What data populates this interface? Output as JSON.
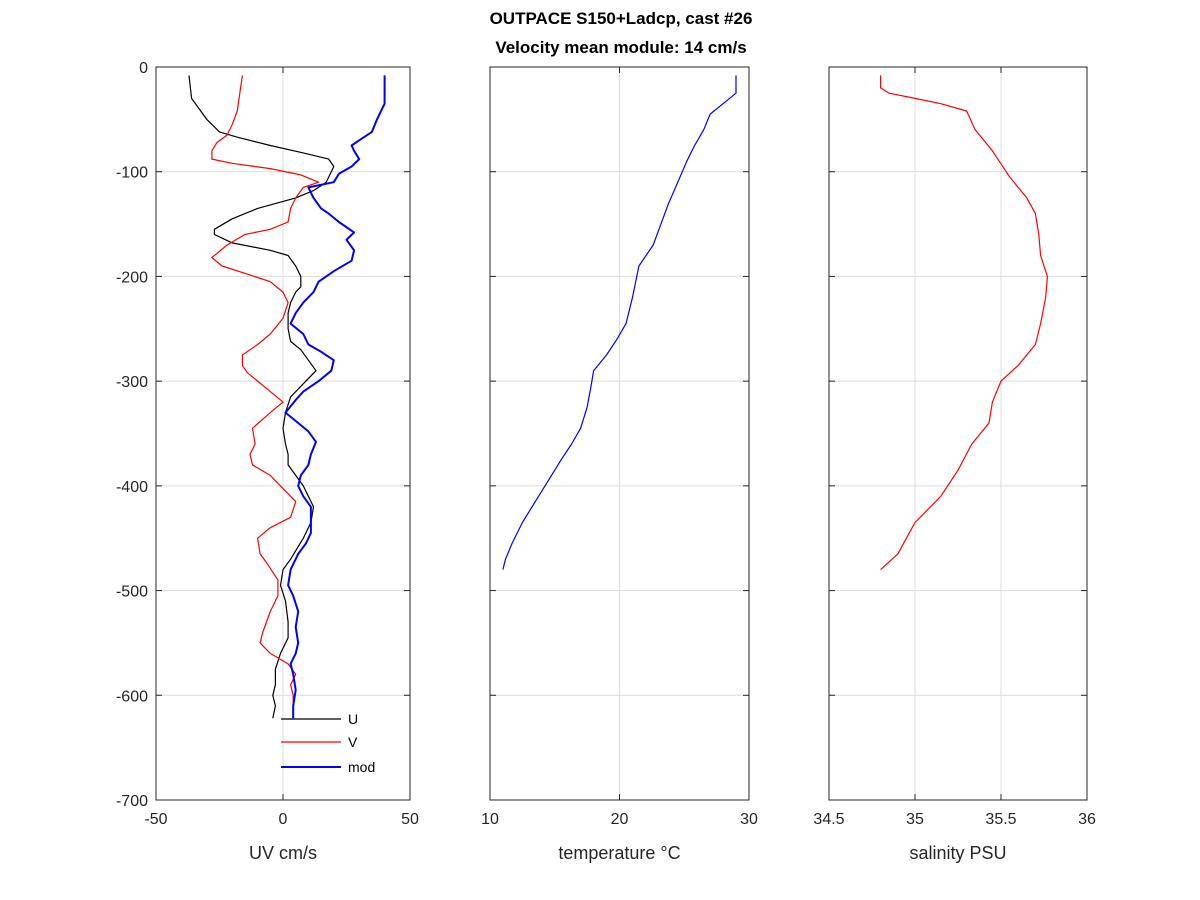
{
  "title_line1": "OUTPACE S150+Ladcp, cast #26",
  "title_line2": "Velocity mean module:  14 cm/s",
  "chart_data": [
    {
      "type": "line",
      "xlabel": "UV cm/s",
      "ylabel": "",
      "xlim": [
        -50,
        50
      ],
      "ylim": [
        -700,
        0
      ],
      "xticks": [
        -50,
        0,
        50
      ],
      "yticks": [
        0,
        -100,
        -200,
        -300,
        -400,
        -500,
        -600,
        -700
      ],
      "grid": true,
      "legend_position": "bottom-right inside",
      "series": [
        {
          "name": "U",
          "color": "#000000",
          "points": [
            [
              -37,
              -8
            ],
            [
              -36,
              -30
            ],
            [
              -30,
              -50
            ],
            [
              -25,
              -62
            ],
            [
              -18,
              -67
            ],
            [
              -5,
              -75
            ],
            [
              8,
              -82
            ],
            [
              18,
              -88
            ],
            [
              20,
              -95
            ],
            [
              17,
              -110
            ],
            [
              12,
              -118
            ],
            [
              5,
              -125
            ],
            [
              -10,
              -135
            ],
            [
              -20,
              -145
            ],
            [
              -27,
              -155
            ],
            [
              -27,
              -160
            ],
            [
              -20,
              -168
            ],
            [
              -5,
              -175
            ],
            [
              2,
              -180
            ],
            [
              5,
              -190
            ],
            [
              7,
              -200
            ],
            [
              7,
              -210
            ],
            [
              5,
              -215
            ],
            [
              3,
              -225
            ],
            [
              2,
              -235
            ],
            [
              2,
              -250
            ],
            [
              3,
              -262
            ],
            [
              7,
              -270
            ],
            [
              10,
              -280
            ],
            [
              13,
              -290
            ],
            [
              9,
              -300
            ],
            [
              3,
              -315
            ],
            [
              1,
              -330
            ],
            [
              0,
              -345
            ],
            [
              1,
              -360
            ],
            [
              2,
              -370
            ],
            [
              2,
              -380
            ],
            [
              5,
              -390
            ],
            [
              8,
              -400
            ],
            [
              10,
              -410
            ],
            [
              12,
              -420
            ],
            [
              11,
              -435
            ],
            [
              8,
              -450
            ],
            [
              3,
              -470
            ],
            [
              0,
              -480
            ],
            [
              -1,
              -495
            ],
            [
              1,
              -510
            ],
            [
              2,
              -530
            ],
            [
              2,
              -545
            ],
            [
              -1,
              -560
            ],
            [
              -3,
              -575
            ],
            [
              -3,
              -590
            ],
            [
              -4,
              -600
            ],
            [
              -3,
              -610
            ],
            [
              -4,
              -622
            ]
          ]
        },
        {
          "name": "V",
          "color": "#ff0000",
          "points": [
            [
              -16,
              -8
            ],
            [
              -17,
              -25
            ],
            [
              -18,
              -42
            ],
            [
              -20,
              -55
            ],
            [
              -22,
              -65
            ],
            [
              -26,
              -72
            ],
            [
              -28,
              -80
            ],
            [
              -28,
              -88
            ],
            [
              -20,
              -92
            ],
            [
              -5,
              -97
            ],
            [
              7,
              -103
            ],
            [
              14,
              -110
            ],
            [
              8,
              -115
            ],
            [
              5,
              -125
            ],
            [
              3,
              -135
            ],
            [
              2,
              -148
            ],
            [
              -5,
              -155
            ],
            [
              -15,
              -160
            ],
            [
              -22,
              -170
            ],
            [
              -28,
              -182
            ],
            [
              -24,
              -190
            ],
            [
              -15,
              -197
            ],
            [
              -5,
              -205
            ],
            [
              0,
              -215
            ],
            [
              2,
              -225
            ],
            [
              0,
              -240
            ],
            [
              -5,
              -255
            ],
            [
              -10,
              -265
            ],
            [
              -16,
              -275
            ],
            [
              -16,
              -285
            ],
            [
              -14,
              -292
            ],
            [
              -10,
              -300
            ],
            [
              -5,
              -310
            ],
            [
              0,
              -320
            ],
            [
              -5,
              -330
            ],
            [
              -12,
              -345
            ],
            [
              -11,
              -360
            ],
            [
              -13,
              -370
            ],
            [
              -12,
              -380
            ],
            [
              -5,
              -390
            ],
            [
              1,
              -405
            ],
            [
              5,
              -415
            ],
            [
              3,
              -430
            ],
            [
              -5,
              -440
            ],
            [
              -10,
              -450
            ],
            [
              -9,
              -465
            ],
            [
              -6,
              -475
            ],
            [
              -2,
              -490
            ],
            [
              -2,
              -505
            ],
            [
              -5,
              -520
            ],
            [
              -8,
              -540
            ],
            [
              -9,
              -550
            ],
            [
              -5,
              -560
            ],
            [
              2,
              -570
            ],
            [
              5,
              -580
            ],
            [
              3,
              -590
            ],
            [
              4,
              -600
            ],
            [
              4,
              -610
            ]
          ]
        },
        {
          "name": "mod",
          "color": "#0000ff",
          "points": [
            [
              40,
              -8
            ],
            [
              40,
              -35
            ],
            [
              37,
              -50
            ],
            [
              35,
              -62
            ],
            [
              30,
              -70
            ],
            [
              27,
              -75
            ],
            [
              28,
              -80
            ],
            [
              30,
              -88
            ],
            [
              27,
              -95
            ],
            [
              22,
              -102
            ],
            [
              20,
              -110
            ],
            [
              10,
              -115
            ],
            [
              12,
              -125
            ],
            [
              15,
              -135
            ],
            [
              18,
              -140
            ],
            [
              22,
              -148
            ],
            [
              28,
              -158
            ],
            [
              25,
              -165
            ],
            [
              28,
              -175
            ],
            [
              27,
              -185
            ],
            [
              20,
              -195
            ],
            [
              14,
              -205
            ],
            [
              12,
              -215
            ],
            [
              8,
              -225
            ],
            [
              5,
              -235
            ],
            [
              3,
              -245
            ],
            [
              8,
              -255
            ],
            [
              10,
              -265
            ],
            [
              15,
              -272
            ],
            [
              20,
              -280
            ],
            [
              19,
              -290
            ],
            [
              14,
              -300
            ],
            [
              8,
              -310
            ],
            [
              5,
              -318
            ],
            [
              1,
              -330
            ],
            [
              6,
              -340
            ],
            [
              10,
              -348
            ],
            [
              13,
              -358
            ],
            [
              11,
              -370
            ],
            [
              10,
              -380
            ],
            [
              7,
              -390
            ],
            [
              6,
              -400
            ],
            [
              8,
              -410
            ],
            [
              11,
              -420
            ],
            [
              11,
              -430
            ],
            [
              11,
              -445
            ],
            [
              9,
              -455
            ],
            [
              6,
              -465
            ],
            [
              3,
              -480
            ],
            [
              2,
              -495
            ],
            [
              4,
              -505
            ],
            [
              6,
              -520
            ],
            [
              5,
              -535
            ],
            [
              6,
              -550
            ],
            [
              5,
              -560
            ],
            [
              3,
              -570
            ],
            [
              4,
              -580
            ],
            [
              5,
              -595
            ],
            [
              4,
              -610
            ],
            [
              4,
              -622
            ]
          ]
        }
      ]
    },
    {
      "type": "line",
      "xlabel": "temperature °C",
      "ylabel": "",
      "xlim": [
        10,
        30
      ],
      "ylim": [
        -700,
        0
      ],
      "xticks": [
        10,
        20,
        30
      ],
      "grid": true,
      "series": [
        {
          "color": "#0000ff",
          "points": [
            [
              29,
              -8
            ],
            [
              29,
              -25
            ],
            [
              28,
              -35
            ],
            [
              27,
              -45
            ],
            [
              26.5,
              -60
            ],
            [
              25.8,
              -75
            ],
            [
              25.2,
              -90
            ],
            [
              24.5,
              -110
            ],
            [
              23.8,
              -130
            ],
            [
              23.2,
              -150
            ],
            [
              22.6,
              -170
            ],
            [
              21.5,
              -190
            ],
            [
              21,
              -220
            ],
            [
              20.5,
              -245
            ],
            [
              19.8,
              -260
            ],
            [
              19,
              -275
            ],
            [
              18,
              -290
            ],
            [
              17.8,
              -305
            ],
            [
              17.5,
              -325
            ],
            [
              17,
              -345
            ],
            [
              16.3,
              -360
            ],
            [
              15.5,
              -375
            ],
            [
              14.5,
              -395
            ],
            [
              13.5,
              -415
            ],
            [
              12.5,
              -435
            ],
            [
              11.7,
              -455
            ],
            [
              11.2,
              -470
            ],
            [
              11,
              -480
            ]
          ]
        }
      ]
    },
    {
      "type": "line",
      "xlabel": "salinity PSU",
      "ylabel": "",
      "xlim": [
        34.5,
        36
      ],
      "ylim": [
        -700,
        0
      ],
      "xticks": [
        34.5,
        35,
        35.5,
        36
      ],
      "grid": true,
      "series": [
        {
          "color": "#ff0000",
          "points": [
            [
              34.8,
              -8
            ],
            [
              34.8,
              -20
            ],
            [
              34.85,
              -25
            ],
            [
              35.0,
              -30
            ],
            [
              35.15,
              -35
            ],
            [
              35.3,
              -42
            ],
            [
              35.35,
              -60
            ],
            [
              35.45,
              -80
            ],
            [
              35.55,
              -105
            ],
            [
              35.65,
              -125
            ],
            [
              35.7,
              -140
            ],
            [
              35.72,
              -160
            ],
            [
              35.73,
              -180
            ],
            [
              35.77,
              -200
            ],
            [
              35.76,
              -220
            ],
            [
              35.73,
              -245
            ],
            [
              35.7,
              -265
            ],
            [
              35.6,
              -285
            ],
            [
              35.5,
              -300
            ],
            [
              35.45,
              -320
            ],
            [
              35.43,
              -340
            ],
            [
              35.33,
              -360
            ],
            [
              35.25,
              -385
            ],
            [
              35.15,
              -410
            ],
            [
              35.0,
              -435
            ],
            [
              34.95,
              -450
            ],
            [
              34.9,
              -465
            ],
            [
              34.8,
              -480
            ]
          ]
        }
      ]
    }
  ]
}
